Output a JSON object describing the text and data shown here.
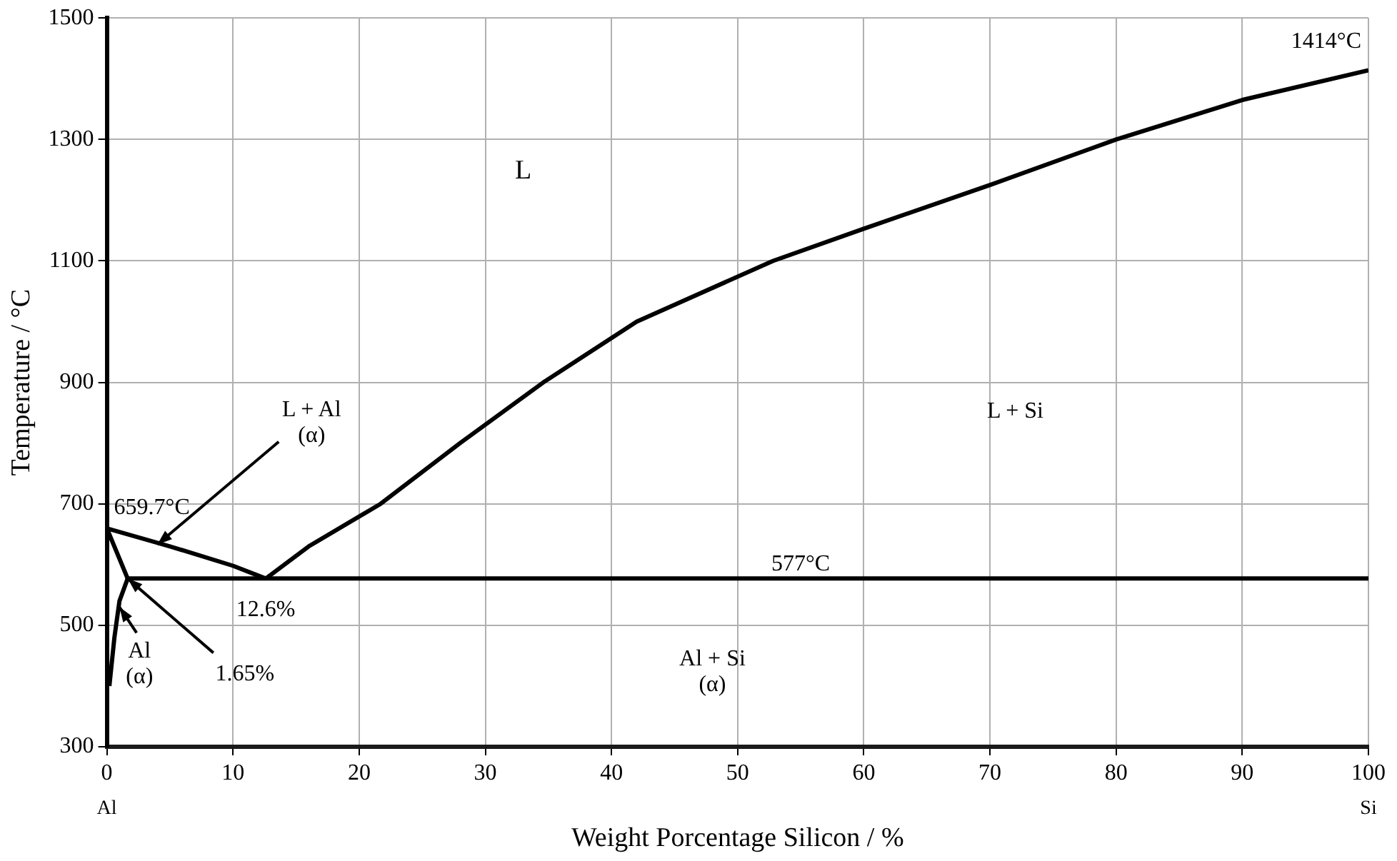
{
  "chart_data": {
    "type": "line",
    "xlabel": "Weight Porcentage Silicon / %",
    "ylabel": "Temperature / °C",
    "xlim": [
      0,
      100
    ],
    "xticks": [
      0,
      10,
      20,
      30,
      40,
      50,
      60,
      70,
      80,
      90,
      100
    ],
    "ylim": [
      300,
      1500
    ],
    "yticks": [
      300,
      500,
      700,
      900,
      1100,
      1300,
      1500
    ],
    "grid": true,
    "legend": false,
    "marker": "none",
    "line_style": "solid",
    "series": [
      {
        "color": "#000000",
        "x": [
          12.6,
          16,
          21.7,
          28,
          34.6,
          42,
          52.8,
          60,
          70,
          80,
          90,
          100
        ],
        "values": [
          577,
          630,
          700,
          800,
          900,
          1000,
          1100,
          1153,
          1225,
          1300,
          1365,
          1414
        ]
      },
      {
        "color": "#000000",
        "x": [
          0,
          5,
          10,
          12.6
        ],
        "values": [
          659.7,
          630,
          598,
          577
        ]
      },
      {
        "color": "#000000",
        "x": [
          0,
          1.65
        ],
        "values": [
          659.7,
          577
        ]
      },
      {
        "color": "#000000",
        "x": [
          0.2,
          0.6,
          1,
          1.65
        ],
        "values": [
          400,
          480,
          540,
          577
        ]
      },
      {
        "color": "#000000",
        "x": [
          1.65,
          100
        ],
        "values": [
          577,
          577
        ]
      }
    ],
    "annotations": [
      {
        "text": "659.7°C",
        "x": 0,
        "y": 659.7
      },
      {
        "text": "1414°C",
        "x": 100,
        "y": 1414
      },
      {
        "text": "577°C",
        "x": 55,
        "y": 577
      },
      {
        "text": "12.6%",
        "x": 12.6,
        "y": 577
      },
      {
        "text": "1.65%",
        "x": 1.65,
        "y": 577
      },
      {
        "text": "Al\n(α)",
        "x": 1,
        "y": 530
      },
      {
        "text": "L + Al\n(α)",
        "x": 4,
        "y": 633
      },
      "L",
      "L + Si",
      "Al + Si\n(α)",
      "Al",
      "Si"
    ]
  }
}
